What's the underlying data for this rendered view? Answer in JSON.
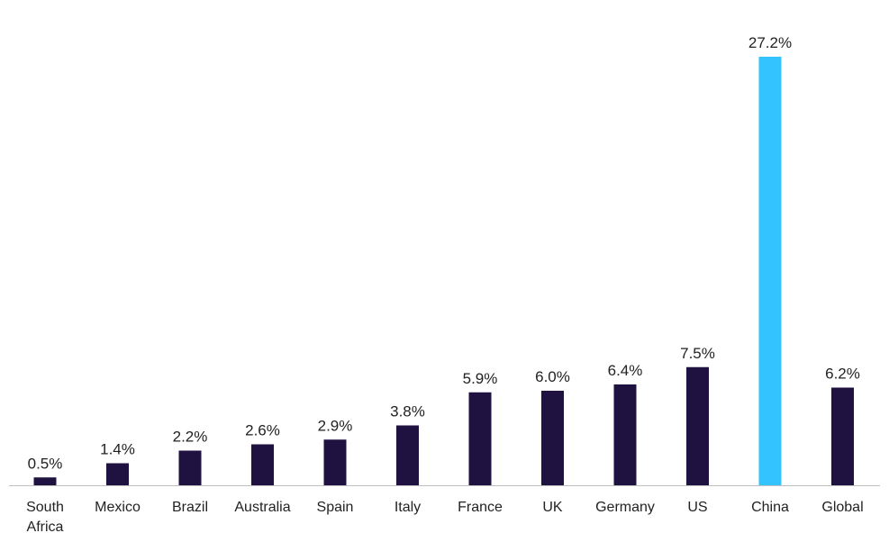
{
  "chart_data": {
    "type": "bar",
    "categories": [
      "South Africa",
      "Mexico",
      "Brazil",
      "Australia",
      "Spain",
      "Italy",
      "France",
      "UK",
      "Germany",
      "US",
      "China",
      "Global"
    ],
    "values": [
      0.5,
      1.4,
      2.2,
      2.6,
      2.9,
      3.8,
      5.9,
      6.0,
      6.4,
      7.5,
      27.2,
      6.2
    ],
    "value_labels": [
      "0.5%",
      "1.4%",
      "2.2%",
      "2.6%",
      "2.9%",
      "3.8%",
      "5.9%",
      "6.0%",
      "6.4%",
      "7.5%",
      "27.2%",
      "6.2%"
    ],
    "colors": [
      "#1f1240",
      "#1f1240",
      "#1f1240",
      "#1f1240",
      "#1f1240",
      "#1f1240",
      "#1f1240",
      "#1f1240",
      "#1f1240",
      "#1f1240",
      "#33c4ff",
      "#1f1240"
    ]
  }
}
